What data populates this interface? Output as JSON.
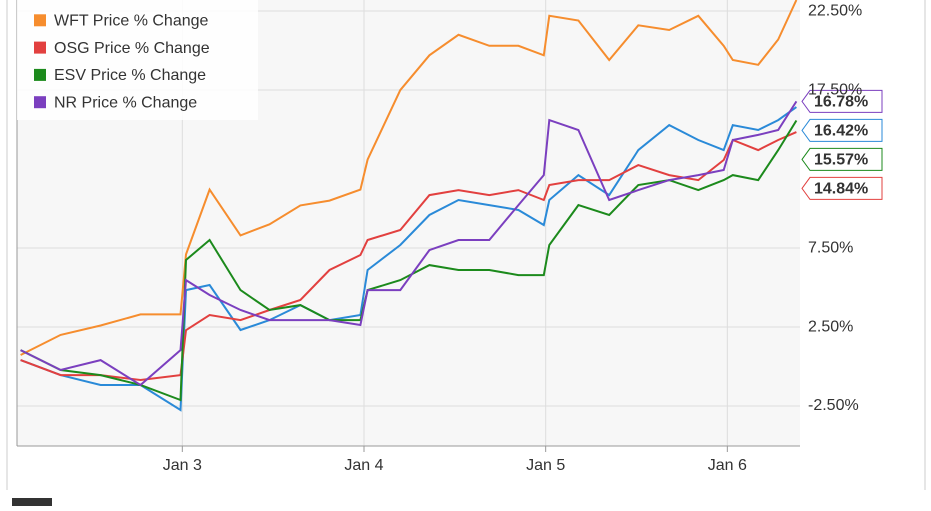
{
  "chart_data": {
    "type": "line",
    "x": [
      2.11,
      2.33,
      2.55,
      2.77,
      2.99,
      3.02,
      3.15,
      3.32,
      3.48,
      3.65,
      3.81,
      3.98,
      4.02,
      4.2,
      4.36,
      4.52,
      4.69,
      4.85,
      4.99,
      5.02,
      5.18,
      5.35,
      5.51,
      5.68,
      5.84,
      5.98,
      6.03,
      6.17,
      6.28,
      6.38
    ],
    "series": [
      {
        "color": "#2a8ad8",
        "values": [
          0.41,
          -0.54,
          -1.17,
          -1.17,
          -2.75,
          4.84,
          5.16,
          2.31,
          2.94,
          3.89,
          2.94,
          3.26,
          6.11,
          7.69,
          9.59,
          10.54,
          10.22,
          9.91,
          8.96,
          10.54,
          12.12,
          10.85,
          13.7,
          15.28,
          14.34,
          13.7,
          15.28,
          14.97,
          15.6,
          16.42
        ],
        "value_labels": [
          null,
          null,
          null,
          null,
          null,
          null,
          null,
          null,
          null,
          null,
          null,
          null,
          null,
          null,
          null,
          null,
          null,
          null,
          null,
          null,
          null,
          null,
          null,
          null,
          null,
          null,
          null,
          null,
          null,
          "16.42%"
        ]
      },
      {
        "name": "WFT Price % Change",
        "color": "#f68d2e",
        "values": [
          0.73,
          2.0,
          2.6,
          3.3,
          3.3,
          7.1,
          11.2,
          8.3,
          9.0,
          10.2,
          10.5,
          11.2,
          13.1,
          17.5,
          19.7,
          21.0,
          20.3,
          20.3,
          19.7,
          22.2,
          21.9,
          19.4,
          21.6,
          21.3,
          22.2,
          20.3,
          19.4,
          19.1,
          20.7,
          23.2
        ]
      },
      {
        "name": "OSG Price % Change",
        "color": "#e2403f",
        "values": [
          0.41,
          -0.54,
          -0.54,
          -0.85,
          -0.54,
          2.3,
          3.26,
          2.94,
          3.58,
          4.21,
          6.11,
          7.06,
          8.01,
          8.64,
          10.85,
          11.17,
          10.85,
          11.17,
          10.54,
          11.49,
          11.8,
          11.8,
          12.75,
          12.12,
          11.8,
          13.07,
          14.34,
          13.7,
          14.34,
          14.84
        ],
        "value_labels": [
          null,
          null,
          null,
          null,
          null,
          null,
          null,
          null,
          null,
          null,
          null,
          null,
          null,
          null,
          null,
          null,
          null,
          null,
          null,
          null,
          null,
          null,
          null,
          null,
          null,
          null,
          null,
          null,
          null,
          "14.84%"
        ]
      },
      {
        "name": "ESV Price % Change",
        "color": "#1c8a1c",
        "values": [
          1.04,
          -0.22,
          -0.54,
          -1.17,
          -2.12,
          6.74,
          8.01,
          4.84,
          3.58,
          3.89,
          2.94,
          2.94,
          4.84,
          5.47,
          6.42,
          6.11,
          6.11,
          5.79,
          5.79,
          7.69,
          10.22,
          9.59,
          11.49,
          11.8,
          11.17,
          11.8,
          12.12,
          11.8,
          13.7,
          15.57
        ],
        "value_labels": [
          null,
          null,
          null,
          null,
          null,
          null,
          null,
          null,
          null,
          null,
          null,
          null,
          null,
          null,
          null,
          null,
          null,
          null,
          null,
          null,
          null,
          null,
          null,
          null,
          null,
          null,
          null,
          null,
          null,
          "15.57%"
        ]
      },
      {
        "name": "NR Price % Change",
        "color": "#7b3fbf",
        "values": [
          1.04,
          -0.22,
          0.41,
          -1.17,
          1.04,
          5.47,
          4.53,
          3.58,
          2.94,
          2.94,
          2.94,
          2.63,
          4.84,
          4.84,
          7.37,
          8.01,
          8.01,
          10.22,
          12.12,
          15.6,
          14.97,
          10.54,
          11.17,
          11.8,
          12.12,
          12.44,
          14.34,
          14.66,
          14.97,
          16.78
        ],
        "value_labels": [
          null,
          null,
          null,
          null,
          null,
          null,
          null,
          null,
          null,
          null,
          null,
          null,
          null,
          null,
          null,
          null,
          null,
          null,
          null,
          null,
          null,
          null,
          null,
          null,
          null,
          null,
          null,
          null,
          null,
          "16.78%"
        ]
      }
    ],
    "xlim": [
      2.09,
      6.4
    ],
    "xticks": [
      {
        "value": 3,
        "label": "Jan 3"
      },
      {
        "value": 4,
        "label": "Jan 4"
      },
      {
        "value": 5,
        "label": "Jan 5"
      },
      {
        "value": 6,
        "label": "Jan 6"
      }
    ],
    "ylim": [
      -5.03,
      23.2
    ],
    "yticks": [
      {
        "value": -2.5,
        "label": "-2.50%"
      },
      {
        "value": 2.5,
        "label": "2.50%"
      },
      {
        "value": 7.5,
        "label": "7.50%"
      },
      {
        "value": 17.5,
        "label": "17.50%"
      },
      {
        "value": 22.5,
        "label": "22.50%"
      }
    ],
    "grid": true
  }
}
